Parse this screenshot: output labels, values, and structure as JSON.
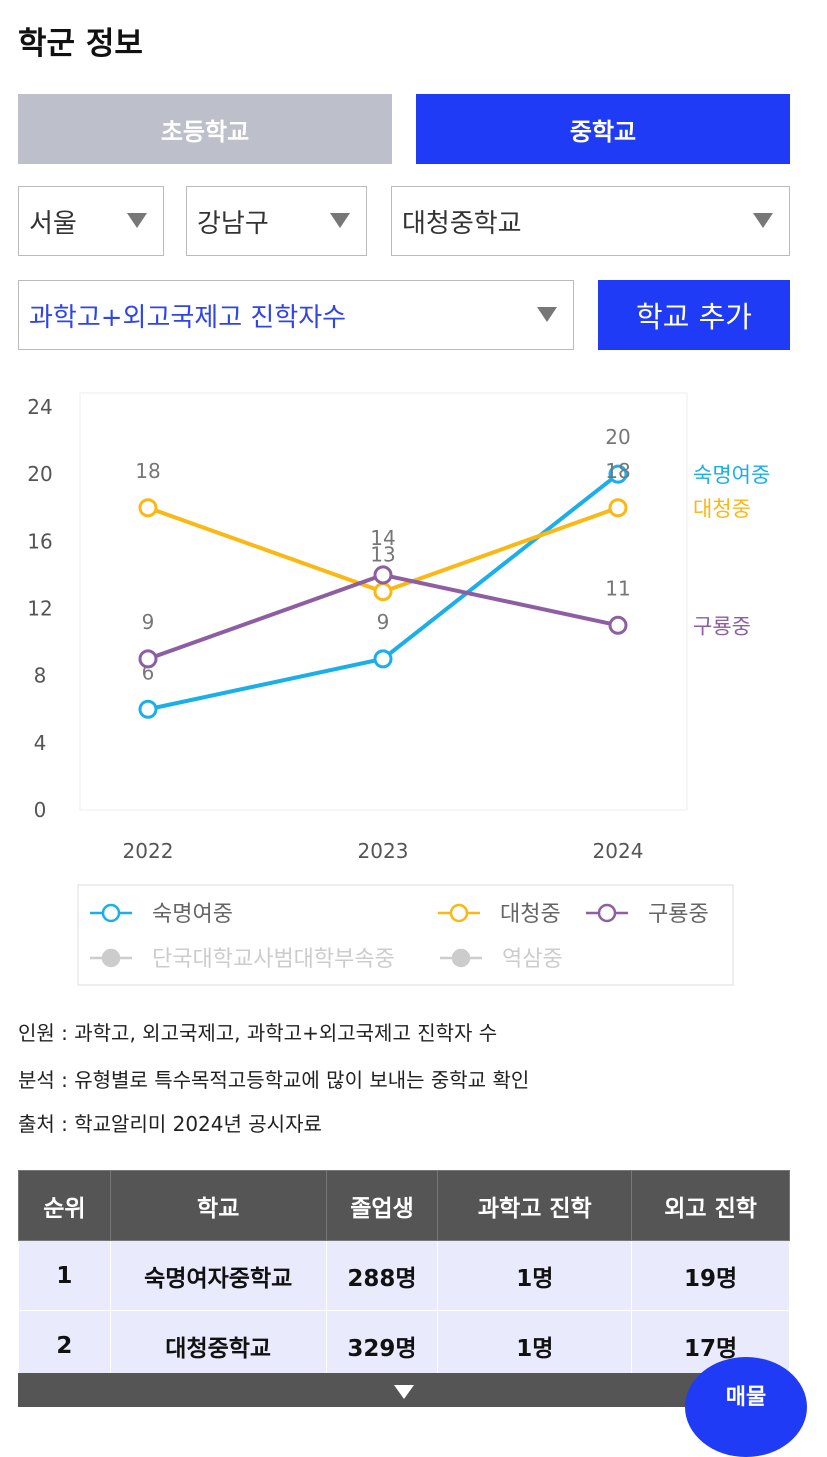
{
  "title": "학군 정보",
  "tabs": [
    "초등학교",
    "중학교"
  ],
  "filters": [
    "서울",
    "강남구",
    "대청중학교"
  ],
  "metric_select": "과학고+외고국제고 진학자수",
  "add_button": "학교 추가",
  "chart_data": {
    "type": "line",
    "categories": [
      "2022",
      "2023",
      "2024"
    ],
    "ylim": [
      0,
      24
    ],
    "yticks": [
      0,
      4,
      8,
      12,
      16,
      20,
      24
    ],
    "series": [
      {
        "name": "숙명여중",
        "color": "#1aafe8",
        "values": [
          6,
          9,
          20
        ]
      },
      {
        "name": "대청중",
        "color": "#fbb714",
        "values": [
          18,
          13,
          18
        ]
      },
      {
        "name": "구룡중",
        "color": "#8e5ea2",
        "values": [
          9,
          14,
          11
        ]
      },
      {
        "name": "단국대학교사범대학부속중",
        "color": "#cccccc",
        "hidden": true,
        "values": [
          null,
          null,
          null
        ]
      },
      {
        "name": "역삼중",
        "color": "#cccccc",
        "hidden": true,
        "values": [
          null,
          null,
          null
        ]
      }
    ]
  },
  "notes": [
    "인원 : 과학고, 외고국제고, 과학고+외고국제고 진학자 수",
    "분석 : 유형별로 특수목적고등학교에 많이 보내는 중학교 확인",
    "출처 : 학교알리미 2024년 공시자료"
  ],
  "table": {
    "columns": [
      "순위",
      "학교",
      "졸업생",
      "과학고 진학",
      "외고 진학"
    ],
    "rows": [
      [
        "1",
        "숙명여자중학교",
        "288명",
        "1명",
        "19명"
      ],
      [
        "2",
        "대청중학교",
        "329명",
        "1명",
        "17명"
      ]
    ]
  },
  "floating_button": "매물"
}
